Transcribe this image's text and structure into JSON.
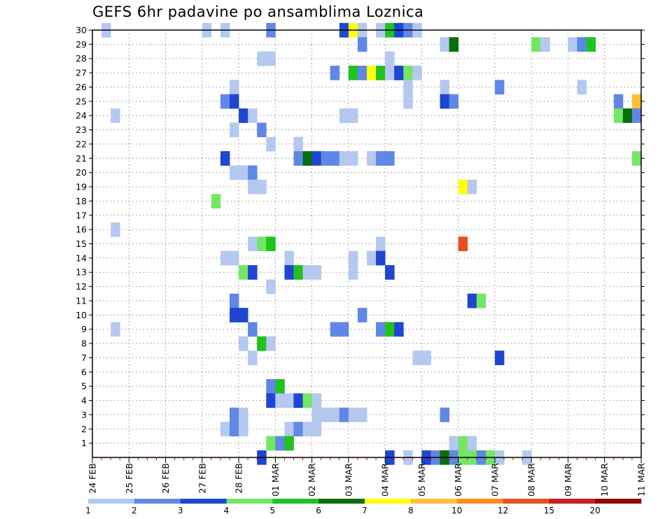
{
  "chart_data": {
    "type": "heatmap",
    "title": "GEFS 6hr padavine po ansamblima Loznica",
    "x_tick_labels": [
      "24 FEB",
      "25 FEB",
      "26 FEB",
      "27 FEB",
      "28 FEB",
      "01 MAR",
      "02 MAR",
      "03 MAR",
      "04 MAR",
      "05 MAR",
      "06 MAR",
      "07 MAR",
      "08 MAR",
      "09 MAR",
      "10 MAR",
      "11 MAR"
    ],
    "y_tick_labels": [
      1,
      2,
      3,
      4,
      5,
      6,
      7,
      8,
      9,
      10,
      11,
      12,
      13,
      14,
      15,
      16,
      17,
      18,
      19,
      20,
      21,
      22,
      23,
      24,
      25,
      26,
      27,
      28,
      29,
      30
    ],
    "x_step_hours": 6,
    "x_range_steps": [
      0,
      60
    ],
    "y_range": [
      0,
      30
    ],
    "grid": true,
    "colorbar": {
      "labels": [
        "1",
        "2",
        "3",
        "4",
        "5",
        "6",
        "7",
        "8",
        "10",
        "12",
        "15",
        "20"
      ],
      "colors": [
        "#b4c8f0",
        "#5f87e6",
        "#1e46d2",
        "#73e664",
        "#1ec31e",
        "#0a6e0a",
        "#ffff0a",
        "#ffbe37",
        "#ff8c1e",
        "#e6501e",
        "#c81e1e",
        "#8c0a0a"
      ]
    },
    "cells": [
      {
        "member": 30,
        "steps": [
          [
            1,
            0
          ],
          [
            12,
            0
          ],
          [
            14,
            0
          ],
          [
            19,
            1
          ],
          [
            27,
            2
          ],
          [
            28,
            6
          ],
          [
            29,
            0
          ],
          [
            31,
            0
          ],
          [
            32,
            4
          ],
          [
            33,
            2
          ],
          [
            34,
            1
          ],
          [
            35,
            0
          ]
        ]
      },
      {
        "member": 29,
        "steps": [
          [
            29,
            1
          ],
          [
            38,
            0
          ],
          [
            39,
            5
          ],
          [
            48,
            3
          ],
          [
            49,
            0
          ],
          [
            52,
            0
          ],
          [
            53,
            1
          ],
          [
            54,
            4
          ]
        ]
      },
      {
        "member": 28,
        "steps": [
          [
            18,
            0
          ],
          [
            19,
            0
          ],
          [
            32,
            0
          ]
        ]
      },
      {
        "member": 27,
        "steps": [
          [
            26,
            1
          ],
          [
            28,
            4
          ],
          [
            29,
            1
          ],
          [
            30,
            6
          ],
          [
            31,
            4
          ],
          [
            32,
            0
          ],
          [
            33,
            2
          ],
          [
            34,
            3
          ],
          [
            35,
            0
          ]
        ]
      },
      {
        "member": 26,
        "steps": [
          [
            15,
            0
          ],
          [
            34,
            0
          ],
          [
            38,
            0
          ],
          [
            44,
            1
          ],
          [
            53,
            0
          ]
        ]
      },
      {
        "member": 25,
        "steps": [
          [
            14,
            1
          ],
          [
            15,
            2
          ],
          [
            34,
            0
          ],
          [
            38,
            2
          ],
          [
            39,
            1
          ],
          [
            57,
            1
          ],
          [
            59,
            7
          ]
        ]
      },
      {
        "member": 24,
        "steps": [
          [
            2,
            0
          ],
          [
            16,
            2
          ],
          [
            17,
            0
          ],
          [
            27,
            0
          ],
          [
            28,
            0
          ],
          [
            57,
            3
          ],
          [
            58,
            5
          ],
          [
            59,
            1
          ]
        ]
      },
      {
        "member": 23,
        "steps": [
          [
            15,
            0
          ],
          [
            18,
            1
          ]
        ]
      },
      {
        "member": 22,
        "steps": [
          [
            19,
            0
          ],
          [
            22,
            0
          ]
        ]
      },
      {
        "member": 21,
        "steps": [
          [
            14,
            2
          ],
          [
            22,
            1
          ],
          [
            23,
            5
          ],
          [
            24,
            2
          ],
          [
            25,
            1
          ],
          [
            26,
            1
          ],
          [
            27,
            0
          ],
          [
            28,
            0
          ],
          [
            30,
            0
          ],
          [
            31,
            1
          ],
          [
            32,
            1
          ],
          [
            59,
            3
          ]
        ]
      },
      {
        "member": 20,
        "steps": [
          [
            15,
            0
          ],
          [
            16,
            0
          ],
          [
            17,
            1
          ]
        ]
      },
      {
        "member": 19,
        "steps": [
          [
            17,
            0
          ],
          [
            18,
            0
          ],
          [
            40,
            6
          ],
          [
            41,
            0
          ]
        ]
      },
      {
        "member": 18,
        "steps": [
          [
            13,
            3
          ]
        ]
      },
      {
        "member": 16,
        "steps": [
          [
            2,
            0
          ]
        ]
      },
      {
        "member": 15,
        "steps": [
          [
            17,
            0
          ],
          [
            18,
            3
          ],
          [
            19,
            4
          ],
          [
            31,
            0
          ],
          [
            40,
            9
          ]
        ]
      },
      {
        "member": 14,
        "steps": [
          [
            14,
            0
          ],
          [
            15,
            0
          ],
          [
            21,
            0
          ],
          [
            28,
            0
          ],
          [
            30,
            0
          ],
          [
            31,
            2
          ]
        ]
      },
      {
        "member": 13,
        "steps": [
          [
            16,
            3
          ],
          [
            17,
            2
          ],
          [
            21,
            2
          ],
          [
            22,
            4
          ],
          [
            23,
            0
          ],
          [
            24,
            0
          ],
          [
            28,
            0
          ],
          [
            32,
            2
          ]
        ]
      },
      {
        "member": 12,
        "steps": [
          [
            19,
            0
          ]
        ]
      },
      {
        "member": 11,
        "steps": [
          [
            15,
            1
          ],
          [
            41,
            2
          ],
          [
            42,
            3
          ]
        ]
      },
      {
        "member": 10,
        "steps": [
          [
            15,
            2
          ],
          [
            16,
            2
          ],
          [
            29,
            1
          ]
        ]
      },
      {
        "member": 9,
        "steps": [
          [
            2,
            0
          ],
          [
            17,
            1
          ],
          [
            26,
            1
          ],
          [
            27,
            1
          ],
          [
            31,
            1
          ],
          [
            32,
            4
          ],
          [
            33,
            2
          ]
        ]
      },
      {
        "member": 8,
        "steps": [
          [
            16,
            0
          ],
          [
            18,
            4
          ],
          [
            19,
            0
          ]
        ]
      },
      {
        "member": 7,
        "steps": [
          [
            17,
            0
          ],
          [
            35,
            0
          ],
          [
            36,
            0
          ],
          [
            44,
            2
          ]
        ]
      },
      {
        "member": 5,
        "steps": [
          [
            19,
            1
          ],
          [
            20,
            4
          ]
        ]
      },
      {
        "member": 4,
        "steps": [
          [
            19,
            2
          ],
          [
            20,
            0
          ],
          [
            21,
            0
          ],
          [
            22,
            2
          ],
          [
            23,
            3
          ],
          [
            24,
            0
          ]
        ]
      },
      {
        "member": 3,
        "steps": [
          [
            15,
            1
          ],
          [
            16,
            0
          ],
          [
            24,
            0
          ],
          [
            25,
            0
          ],
          [
            26,
            0
          ],
          [
            27,
            1
          ],
          [
            28,
            0
          ],
          [
            29,
            0
          ],
          [
            38,
            1
          ]
        ]
      },
      {
        "member": 2,
        "steps": [
          [
            14,
            0
          ],
          [
            15,
            1
          ],
          [
            16,
            0
          ],
          [
            21,
            0
          ],
          [
            22,
            1
          ],
          [
            23,
            0
          ],
          [
            24,
            0
          ]
        ]
      },
      {
        "member": 1,
        "steps": [
          [
            19,
            3
          ],
          [
            20,
            1
          ],
          [
            21,
            4
          ],
          [
            39,
            0
          ],
          [
            40,
            3
          ],
          [
            41,
            0
          ]
        ]
      },
      {
        "member": 0,
        "steps": [
          [
            18,
            2
          ],
          [
            32,
            2
          ],
          [
            34,
            0
          ],
          [
            36,
            2
          ],
          [
            37,
            1
          ],
          [
            38,
            5
          ],
          [
            39,
            1
          ],
          [
            40,
            3
          ],
          [
            41,
            3
          ],
          [
            42,
            1
          ],
          [
            43,
            3
          ],
          [
            44,
            0
          ],
          [
            47,
            0
          ]
        ]
      }
    ]
  }
}
